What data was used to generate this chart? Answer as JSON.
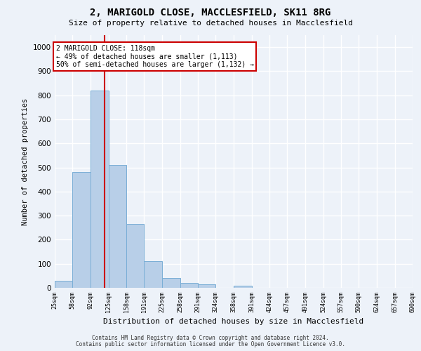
{
  "title1": "2, MARIGOLD CLOSE, MACCLESFIELD, SK11 8RG",
  "title2": "Size of property relative to detached houses in Macclesfield",
  "xlabel": "Distribution of detached houses by size in Macclesfield",
  "ylabel": "Number of detached properties",
  "footer1": "Contains HM Land Registry data © Crown copyright and database right 2024.",
  "footer2": "Contains public sector information licensed under the Open Government Licence v3.0.",
  "annotation_line1": "2 MARIGOLD CLOSE: 118sqm",
  "annotation_line2": "← 49% of detached houses are smaller (1,113)",
  "annotation_line3": "50% of semi-detached houses are larger (1,132) →",
  "vline_x": 118,
  "bar_edges": [
    25,
    58,
    92,
    125,
    158,
    191,
    225,
    258,
    291,
    324,
    358,
    391,
    424,
    457,
    491,
    524,
    557,
    590,
    624,
    657,
    690
  ],
  "bar_heights": [
    30,
    480,
    820,
    510,
    265,
    110,
    40,
    20,
    15,
    0,
    10,
    0,
    0,
    0,
    0,
    0,
    0,
    0,
    0,
    0
  ],
  "bar_color": "#b8cfe8",
  "bar_edge_color": "#7aaed6",
  "vline_color": "#cc0000",
  "annotation_box_edgecolor": "#cc0000",
  "bg_color": "#edf2f9",
  "grid_color": "#ffffff",
  "ylim": [
    0,
    1050
  ],
  "yticks": [
    0,
    100,
    200,
    300,
    400,
    500,
    600,
    700,
    800,
    900,
    1000
  ]
}
